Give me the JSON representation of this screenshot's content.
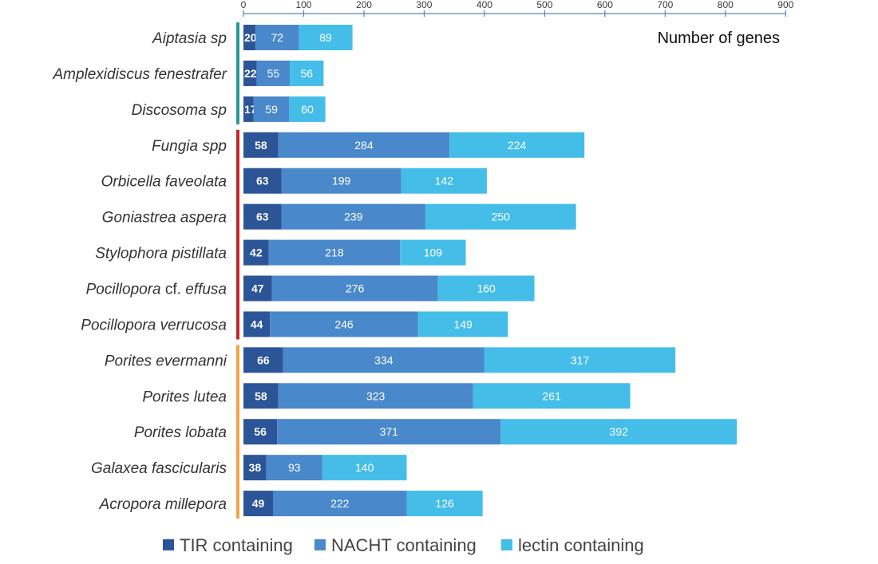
{
  "chart_data": {
    "type": "bar",
    "orientation": "horizontal",
    "stacked": true,
    "title": "",
    "xlabel": "Number of genes",
    "ylabel": "",
    "xlim": [
      0,
      900
    ],
    "xticks": [
      0,
      100,
      200,
      300,
      400,
      500,
      600,
      700,
      800,
      900
    ],
    "grid": false,
    "legend_position": "bottom",
    "categories": [
      "Aiptasia sp",
      "Amplexidiscus fenestrafer",
      "Discosoma sp",
      "Fungia spp",
      "Orbicella faveolata",
      "Goniastrea aspera",
      "Stylophora pistillata",
      "Pocillopora cf. effusa",
      "Pocillopora verrucosa",
      "Porites evermanni",
      "Porites lutea",
      "Porites lobata",
      "Galaxea fascicularis",
      "Acropora millepora"
    ],
    "series": [
      {
        "name": "TIR containing",
        "color": "#2b5597",
        "values": [
          20,
          22,
          17,
          58,
          63,
          63,
          42,
          47,
          44,
          66,
          58,
          56,
          38,
          49
        ]
      },
      {
        "name": "NACHT containing",
        "color": "#4a88cc",
        "values": [
          72,
          55,
          59,
          284,
          199,
          239,
          218,
          276,
          246,
          334,
          323,
          371,
          93,
          222
        ]
      },
      {
        "name": "lectin containing",
        "color": "#45bde9",
        "values": [
          89,
          56,
          60,
          224,
          142,
          250,
          109,
          160,
          149,
          317,
          261,
          392,
          140,
          126
        ]
      }
    ],
    "group_brackets": [
      {
        "color": "#2a9a95",
        "first": 0,
        "last": 2
      },
      {
        "color": "#c0282c",
        "first": 3,
        "last": 8
      },
      {
        "color": "#f0a445",
        "first": 9,
        "last": 13
      }
    ]
  }
}
